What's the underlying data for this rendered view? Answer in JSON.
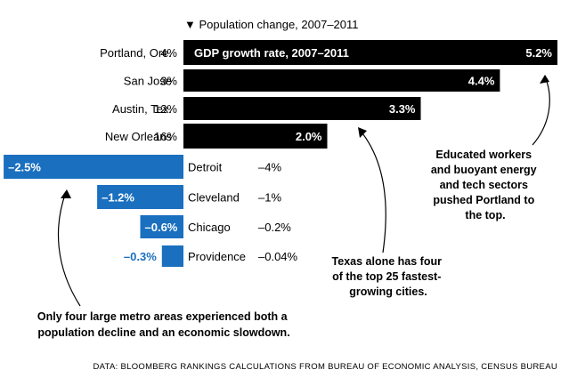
{
  "chart_data": {
    "type": "bar",
    "orientation": "horizontal",
    "population_header": "▼ Population change, 2007–2011",
    "gdp_header": "GDP growth rate, 2007–2011",
    "xlim": [
      -2.5,
      5.2
    ],
    "colors": {
      "positive": "#000000",
      "negative": "#1a6fbf"
    },
    "categories": [
      "Portland, Ore.",
      "San Jose",
      "Austin, Tex.",
      "New Orleans",
      "Detroit",
      "Cleveland",
      "Chicago",
      "Providence"
    ],
    "values": [
      5.2,
      4.4,
      3.3,
      2.0,
      -2.5,
      -1.2,
      -0.6,
      -0.3
    ],
    "value_labels": [
      "5.2%",
      "4.4%",
      "3.3%",
      "2.0%",
      "–2.5%",
      "–1.2%",
      "–0.6%",
      "–0.3%"
    ],
    "population_change": [
      "4%",
      "3%",
      "12%",
      "16%",
      "–4%",
      "–1%",
      "–0.2%",
      "–0.04%"
    ],
    "annotations": [
      "Educated workers and buoyant energy and tech sectors pushed Portland to the top.",
      "Texas alone has four of the top 25 fastest-growing cities.",
      "Only four large metro areas experienced both a population decline and an economic slowdown."
    ],
    "source": "DATA: BLOOMBERG RANKINGS CALCULATIONS FROM BUREAU OF ECONOMIC ANALYSIS, CENSUS BUREAU"
  }
}
